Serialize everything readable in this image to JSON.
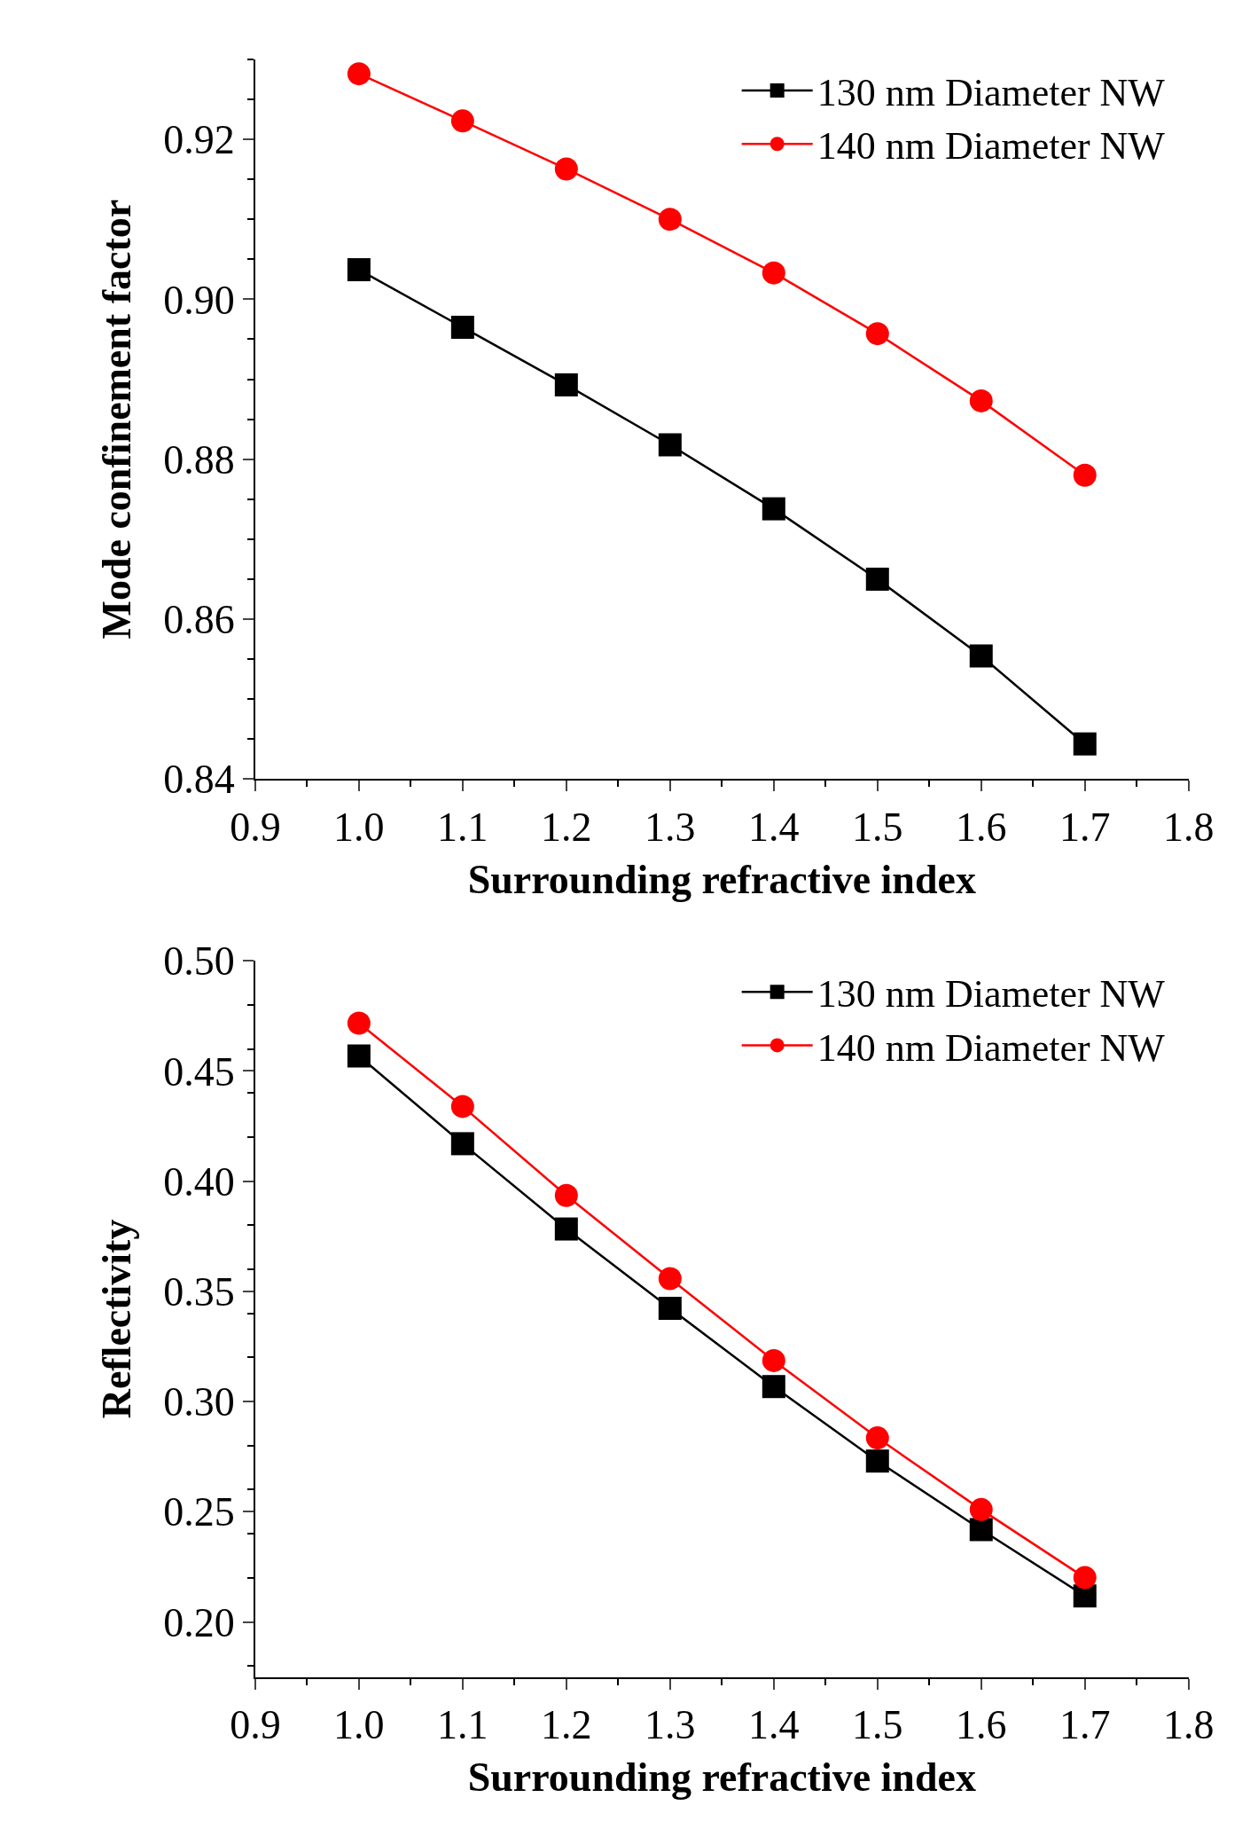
{
  "chart_data": [
    {
      "type": "line",
      "xlabel": "Surrounding refractive index",
      "ylabel": "Mode confinement factor",
      "x": [
        1.0,
        1.1,
        1.2,
        1.3,
        1.4,
        1.5,
        1.6,
        1.7
      ],
      "series": [
        {
          "name": "130 nm Diameter NW",
          "color": "#000000",
          "marker": "square",
          "values": [
            0.9037,
            0.8965,
            0.8893,
            0.8818,
            0.8738,
            0.865,
            0.8554,
            0.8444
          ]
        },
        {
          "name": "140 nm Diameter NW",
          "color": "#ff0000",
          "marker": "circle",
          "values": [
            0.9282,
            0.9223,
            0.9163,
            0.91,
            0.9033,
            0.8957,
            0.8873,
            0.878
          ]
        }
      ],
      "xlim": [
        0.9,
        1.8
      ],
      "xticks": [
        0.9,
        {
          "value": 1.0,
          "label": "1.0"
        },
        1.1,
        1.2,
        1.3,
        1.4,
        1.5,
        1.6,
        1.7,
        1.8
      ],
      "ylim": [
        0.84,
        0.93
      ],
      "yticks": [
        0.84,
        0.86,
        0.88,
        {
          "value": 0.9,
          "label": "0.90"
        },
        0.92
      ],
      "legend": "top right",
      "line_style": "solid"
    },
    {
      "type": "line",
      "xlabel": "Surrounding refractive index",
      "ylabel": "Reflectivity",
      "x": [
        1.0,
        1.1,
        1.2,
        1.3,
        1.4,
        1.5,
        1.6,
        1.7
      ],
      "series": [
        {
          "name": "130 nm Diameter NW",
          "color": "#000000",
          "marker": "square",
          "values": [
            0.4568,
            0.417,
            0.3783,
            0.3423,
            0.3068,
            0.273,
            0.2419,
            0.2118
          ]
        },
        {
          "name": "140 nm Diameter NW",
          "color": "#ff0000",
          "marker": "circle",
          "values": [
            0.4717,
            0.4339,
            0.3935,
            0.3558,
            0.3186,
            0.2835,
            0.251,
            0.2201
          ]
        }
      ],
      "xlim": [
        0.9,
        1.8
      ],
      "xticks": [
        0.9,
        {
          "value": 1.0,
          "label": "1.0"
        },
        1.1,
        1.2,
        1.3,
        1.4,
        1.5,
        1.6,
        1.7,
        1.8
      ],
      "ylim": [
        0.175,
        0.5
      ],
      "yticks": [
        {
          "value": 0.2,
          "label": "0.20"
        },
        0.25,
        {
          "value": 0.3,
          "label": "0.30"
        },
        0.35,
        {
          "value": 0.4,
          "label": "0.40"
        },
        0.45,
        {
          "value": 0.5,
          "label": "0.50"
        }
      ],
      "legend": "top right",
      "line_style": "solid"
    }
  ]
}
